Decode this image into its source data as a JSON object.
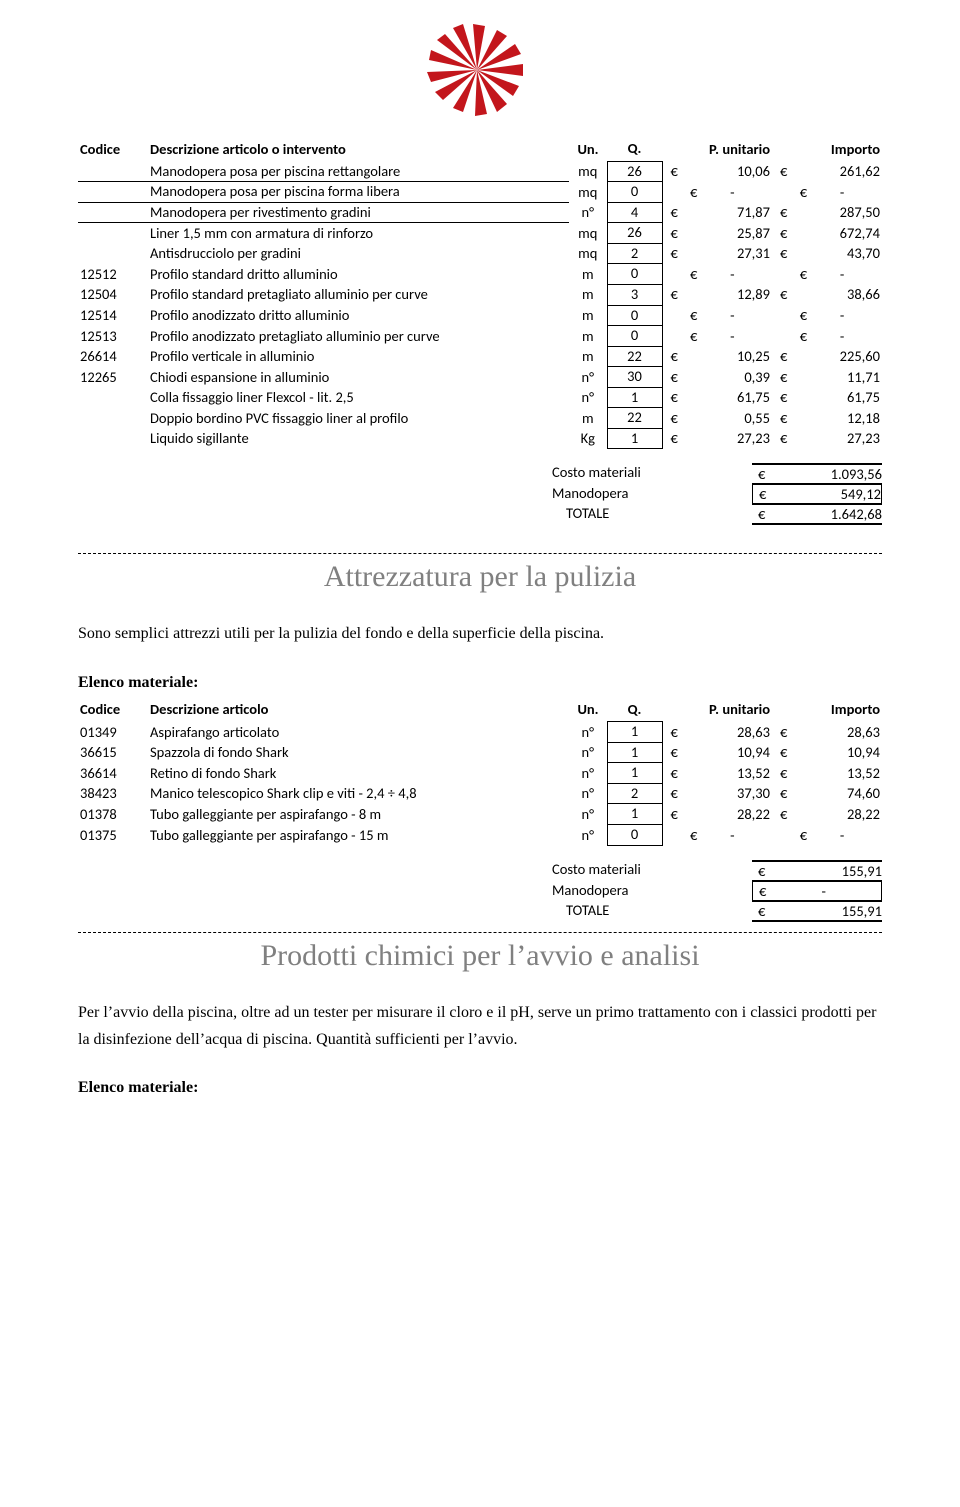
{
  "logo": {
    "color": "#c3161c"
  },
  "table1": {
    "headers": {
      "codice": "Codice",
      "desc": "Descrizione articolo o intervento",
      "un": "Un.",
      "q": "Q.",
      "pu": "P. unitario",
      "imp": "Importo"
    },
    "rows": [
      {
        "code": "",
        "desc": "Manodopera posa per piscina rettangolare",
        "un": "mq",
        "q": "26",
        "pu": "10,06",
        "imp": "261,62"
      },
      {
        "code": "",
        "desc": "Manodopera posa per piscina forma libera",
        "un": "mq",
        "q": "0",
        "pu": "-",
        "imp": "-"
      },
      {
        "code": "",
        "desc": "Manodopera per rivestimento gradini",
        "un": "n°",
        "q": "4",
        "pu": "71,87",
        "imp": "287,50"
      },
      {
        "code": "",
        "desc": "Liner 1,5 mm con armatura di rinforzo",
        "un": "mq",
        "q": "26",
        "pu": "25,87",
        "imp": "672,74"
      },
      {
        "code": "",
        "desc": "Antisdrucciolo per gradini",
        "un": "mq",
        "q": "2",
        "pu": "27,31",
        "imp": "43,70"
      },
      {
        "code": "12512",
        "desc": "Profilo standard dritto alluminio",
        "un": "m",
        "q": "0",
        "pu": "-",
        "imp": "-"
      },
      {
        "code": "12504",
        "desc": "Profilo standard pretagliato alluminio per curve",
        "un": "m",
        "q": "3",
        "pu": "12,89",
        "imp": "38,66"
      },
      {
        "code": "12514",
        "desc": "Profilo anodizzato dritto alluminio",
        "un": "m",
        "q": "0",
        "pu": "-",
        "imp": "-"
      },
      {
        "code": "12513",
        "desc": "Profilo anodizzato pretagliato alluminio per curve",
        "un": "m",
        "q": "0",
        "pu": "-",
        "imp": "-"
      },
      {
        "code": "26614",
        "desc": "Profilo verticale in alluminio",
        "un": "m",
        "q": "22",
        "pu": "10,25",
        "imp": "225,60"
      },
      {
        "code": "12265",
        "desc": "Chiodi espansione in alluminio",
        "un": "n°",
        "q": "30",
        "pu": "0,39",
        "imp": "11,71"
      },
      {
        "code": "",
        "desc": "Colla fissaggio liner Flexcol - lit. 2,5",
        "un": "n°",
        "q": "1",
        "pu": "61,75",
        "imp": "61,75"
      },
      {
        "code": "",
        "desc": "Doppio bordino PVC fissaggio liner al profilo",
        "un": "m",
        "q": "22",
        "pu": "0,55",
        "imp": "12,18"
      },
      {
        "code": "",
        "desc": "Liquido sigillante",
        "un": "Kg",
        "q": "1",
        "pu": "27,23",
        "imp": "27,23"
      }
    ],
    "summary": {
      "materiali_l": "Costo materiali",
      "materiali_v": "1.093,56",
      "mano_l": "Manodopera",
      "mano_v": "549,12",
      "tot_l": "TOTALE",
      "tot_v": "1.642,68"
    }
  },
  "section2": {
    "title": "Attrezzatura per la pulizia",
    "intro": "Sono semplici attrezzi utili per la pulizia del fondo e della superficie della piscina.",
    "elenco": "Elenco materiale:",
    "headers": {
      "codice": "Codice",
      "desc": "Descrizione articolo",
      "un": "Un.",
      "q": "Q.",
      "pu": "P. unitario",
      "imp": "Importo"
    },
    "rows": [
      {
        "code": "01349",
        "desc": "Aspirafango articolato",
        "un": "n°",
        "q": "1",
        "pu": "28,63",
        "imp": "28,63"
      },
      {
        "code": "36615",
        "desc": "Spazzola di fondo Shark",
        "un": "n°",
        "q": "1",
        "pu": "10,94",
        "imp": "10,94"
      },
      {
        "code": "36614",
        "desc": "Retino di fondo Shark",
        "un": "n°",
        "q": "1",
        "pu": "13,52",
        "imp": "13,52"
      },
      {
        "code": "38423",
        "desc": "Manico telescopico Shark clip e viti - 2,4 ÷ 4,8",
        "un": "n°",
        "q": "2",
        "pu": "37,30",
        "imp": "74,60"
      },
      {
        "code": "01378",
        "desc": "Tubo galleggiante per aspirafango - 8 m",
        "un": "n°",
        "q": "1",
        "pu": "28,22",
        "imp": "28,22"
      },
      {
        "code": "01375",
        "desc": "Tubo galleggiante per aspirafango - 15 m",
        "un": "n°",
        "q": "0",
        "pu": "-",
        "imp": "-"
      }
    ],
    "summary": {
      "materiali_l": "Costo materiali",
      "materiali_v": "155,91",
      "mano_l": "Manodopera",
      "mano_v": "-",
      "tot_l": "TOTALE",
      "tot_v": "155,91"
    }
  },
  "section3": {
    "title": "Prodotti chimici per l’avvio e analisi",
    "intro": "Per l’avvio della piscina, oltre ad un tester per misurare il  cloro e il  pH,  serve un primo trattamento con i classici prodotti per la disinfezione dell’acqua di piscina. Quantità sufficienti per l’avvio.",
    "elenco": "Elenco materiale:"
  }
}
